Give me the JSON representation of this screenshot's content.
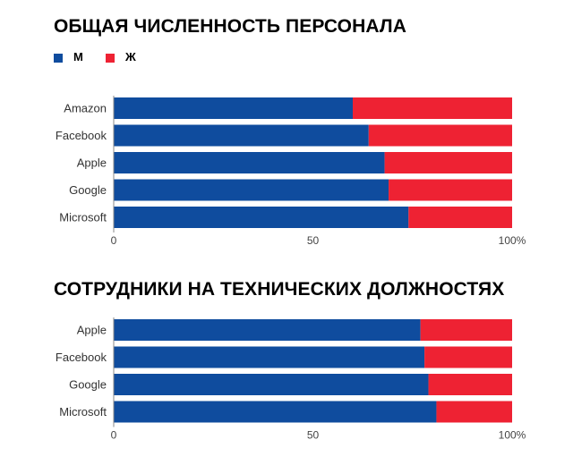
{
  "chart_data": [
    {
      "type": "bar",
      "orientation": "horizontal",
      "stacked": true,
      "title": "ОБЩАЯ ЧИСЛЕННОСТЬ ПЕРСОНАЛА",
      "categories": [
        "Amazon",
        "Facebook",
        "Apple",
        "Google",
        "Microsoft"
      ],
      "series": [
        {
          "name": "М",
          "color": "#0f4c9e",
          "values": [
            60,
            64,
            68,
            69,
            74
          ]
        },
        {
          "name": "Ж",
          "color": "#ee2233",
          "values": [
            40,
            36,
            32,
            31,
            26
          ]
        }
      ],
      "xlim": [
        0,
        100
      ],
      "xticks": [
        "0",
        "50",
        "100%"
      ],
      "grid": false,
      "legend": "top-left"
    },
    {
      "type": "bar",
      "orientation": "horizontal",
      "stacked": true,
      "title": "СОТРУДНИКИ НА ТЕХНИЧЕСКИХ ДОЛЖНОСТЯХ",
      "categories": [
        "Apple",
        "Facebook",
        "Google",
        "Microsoft"
      ],
      "series": [
        {
          "name": "М",
          "color": "#0f4c9e",
          "values": [
            77,
            78,
            79,
            81
          ]
        },
        {
          "name": "Ж",
          "color": "#ee2233",
          "values": [
            23,
            22,
            21,
            19
          ]
        }
      ],
      "xlim": [
        0,
        100
      ],
      "xticks": [
        "0",
        "50",
        "100%"
      ],
      "grid": false
    }
  ]
}
